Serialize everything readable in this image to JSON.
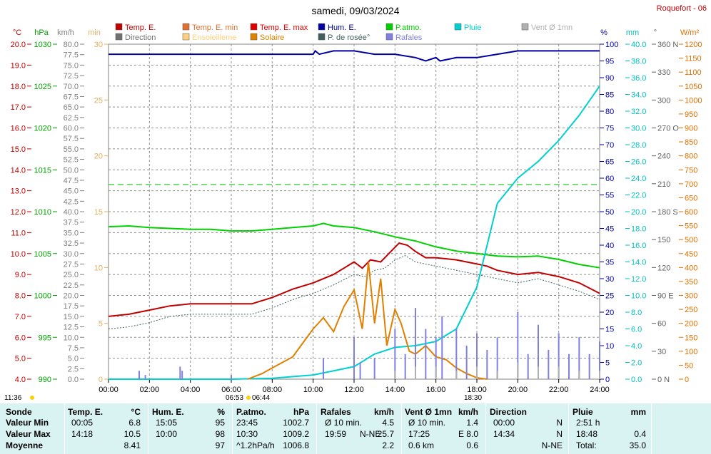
{
  "header": {
    "date_title": "samedi, 09/03/2024",
    "station": "Roquefort - 06",
    "sunrise_time": "06:53",
    "sunset_time": "18:30",
    "extra_time_left": "11:36",
    "extra_time_mid": "06:44"
  },
  "legend": [
    {
      "label": "Temp. E.",
      "color": "#c00000"
    },
    {
      "label": "Temp. E. min",
      "color": "#e07030"
    },
    {
      "label": "Temp. E. max",
      "color": "#e00000"
    },
    {
      "label": "Hum. E.",
      "color": "#0000a0"
    },
    {
      "label": "P.atmo.",
      "color": "#00d000"
    },
    {
      "label": "Pluie",
      "color": "#00d0d0"
    },
    {
      "label": "Vent Ø 1mn",
      "color": "#b0b0b0"
    },
    {
      "label": "Direction",
      "color": "#707070"
    },
    {
      "label": "Ensoleilleme",
      "color": "#ffd080"
    },
    {
      "label": "Solaire",
      "color": "#e08000"
    },
    {
      "label": "P. de rosée°",
      "color": "#406060"
    },
    {
      "label": "Rafales",
      "color": "#8080e0"
    }
  ],
  "axes": {
    "temp_unit": "°C",
    "press_unit": "hPa",
    "wind_unit": "km/h",
    "min_unit": "min",
    "hum_unit": "%",
    "rain_unit": "mm",
    "dir_unit": "°",
    "solar_unit": "W/m²",
    "temp_ticks": [
      "20.0",
      "19.0",
      "18.0",
      "17.0",
      "16.0",
      "15.0",
      "14.0",
      "13.0",
      "12.0",
      "11.0",
      "10.0",
      "9.0",
      "8.0",
      "7.0",
      "6.0",
      "5.0",
      "4.0"
    ],
    "press_ticks": [
      "1030",
      "1025",
      "1020",
      "1015",
      "1010",
      "1005",
      "1000",
      "995",
      "990"
    ],
    "wind_ticks": [
      "80.0",
      "77.5",
      "75.0",
      "72.5",
      "70.0",
      "67.5",
      "65.0",
      "62.5",
      "60.0",
      "57.5",
      "55.0",
      "52.5",
      "50.0",
      "47.5",
      "45.0",
      "42.5",
      "40.0",
      "37.5",
      "35.0",
      "32.5",
      "30.0",
      "27.5",
      "25.0",
      "22.5",
      "20.0",
      "17.5",
      "15.0",
      "12.5",
      "10.0",
      "7.5",
      "5.0",
      "2.5",
      "0.0"
    ],
    "min_ticks": [
      "30",
      "25",
      "20",
      "15",
      "10",
      "5",
      "0"
    ],
    "hum_ticks": [
      "100",
      "95",
      "90",
      "85",
      "80",
      "75",
      "70",
      "65",
      "60",
      "55",
      "50",
      "45",
      "40",
      "35",
      "30",
      "25",
      "20",
      "15",
      "10",
      "5",
      "0"
    ],
    "rain_ticks": [
      "40.0",
      "38.0",
      "36.0",
      "34.0",
      "32.0",
      "30.0",
      "28.0",
      "26.0",
      "24.0",
      "22.0",
      "20.0",
      "18.0",
      "16.0",
      "14.0",
      "12.0",
      "10.0",
      "8.0",
      "6.0",
      "4.0",
      "2.0",
      "0.0"
    ],
    "dir_ticks": [
      "360 N",
      "330",
      "300",
      "270 O",
      "240",
      "210",
      "180 S",
      "150",
      "120",
      "90 E",
      "60",
      "30",
      "0 N"
    ],
    "solar_ticks": [
      "1200",
      "1150",
      "1100",
      "1050",
      "1000",
      "950",
      "900",
      "850",
      "800",
      "750",
      "700",
      "650",
      "600",
      "550",
      "500",
      "450",
      "400",
      "350",
      "300",
      "250",
      "200",
      "150",
      "100",
      "50",
      "0"
    ],
    "time_ticks": [
      "00:00",
      "02:00",
      "04:00",
      "06:00",
      "08:00",
      "10:00",
      "12:00",
      "14:00",
      "16:00",
      "18:00",
      "20:00",
      "22:00",
      "24:00"
    ]
  },
  "chart_data": {
    "type": "line",
    "title": "samedi, 09/03/2024",
    "x_unit": "hours",
    "x_range": [
      0,
      24
    ],
    "ylim_temp": [
      4,
      20
    ],
    "ylim_pressure": [
      990,
      1030
    ],
    "ylim_humidity": [
      0,
      100
    ],
    "ylim_rain": [
      0,
      40
    ],
    "ylim_solar": [
      0,
      1200
    ],
    "ylim_wind": [
      0,
      80
    ],
    "grid": true,
    "series": [
      {
        "name": "Temp. E.",
        "axis": "temp",
        "color": "#c00000",
        "points": [
          [
            0,
            7.0
          ],
          [
            1,
            7.1
          ],
          [
            2,
            7.3
          ],
          [
            3,
            7.5
          ],
          [
            4,
            7.6
          ],
          [
            5,
            7.6
          ],
          [
            6,
            7.6
          ],
          [
            7,
            7.6
          ],
          [
            8,
            7.9
          ],
          [
            9,
            8.3
          ],
          [
            10,
            8.6
          ],
          [
            11,
            9.0
          ],
          [
            11.5,
            9.3
          ],
          [
            12,
            9.6
          ],
          [
            12.4,
            9.3
          ],
          [
            12.8,
            9.7
          ],
          [
            13.3,
            9.6
          ],
          [
            13.8,
            10.1
          ],
          [
            14.2,
            10.5
          ],
          [
            14.6,
            10.4
          ],
          [
            15,
            10.1
          ],
          [
            15.5,
            9.8
          ],
          [
            16,
            9.8
          ],
          [
            17,
            9.7
          ],
          [
            18,
            9.5
          ],
          [
            18.5,
            9.4
          ],
          [
            19,
            9.2
          ],
          [
            20,
            9.0
          ],
          [
            21,
            9.1
          ],
          [
            22,
            8.9
          ],
          [
            23,
            8.6
          ],
          [
            24,
            8.1
          ]
        ]
      },
      {
        "name": "P. de rosée°",
        "axis": "temp",
        "color": "#406060",
        "points": [
          [
            0,
            6.4
          ],
          [
            1,
            6.5
          ],
          [
            2,
            6.7
          ],
          [
            3,
            7.0
          ],
          [
            4,
            7.1
          ],
          [
            5,
            7.1
          ],
          [
            6,
            7.1
          ],
          [
            7,
            7.1
          ],
          [
            8,
            7.4
          ],
          [
            9,
            7.8
          ],
          [
            10,
            8.1
          ],
          [
            11,
            8.5
          ],
          [
            12,
            9.0
          ],
          [
            12.5,
            8.9
          ],
          [
            13,
            9.2
          ],
          [
            13.5,
            9.3
          ],
          [
            14,
            9.7
          ],
          [
            14.5,
            9.9
          ],
          [
            15,
            9.6
          ],
          [
            16,
            9.4
          ],
          [
            17,
            9.2
          ],
          [
            18,
            9.0
          ],
          [
            19,
            8.8
          ],
          [
            20,
            8.6
          ],
          [
            21,
            8.8
          ],
          [
            22,
            8.5
          ],
          [
            23,
            8.2
          ],
          [
            24,
            7.8
          ]
        ]
      },
      {
        "name": "P.atmo.",
        "axis": "pressure",
        "color": "#00d000",
        "points": [
          [
            0,
            1008.2
          ],
          [
            1,
            1008.3
          ],
          [
            2,
            1008.1
          ],
          [
            3,
            1008.0
          ],
          [
            4,
            1007.9
          ],
          [
            5,
            1007.9
          ],
          [
            6,
            1007.7
          ],
          [
            7,
            1007.7
          ],
          [
            8,
            1007.9
          ],
          [
            9,
            1008.1
          ],
          [
            10,
            1008.3
          ],
          [
            10.5,
            1008.6
          ],
          [
            11,
            1008.3
          ],
          [
            12,
            1008.1
          ],
          [
            13,
            1007.6
          ],
          [
            14,
            1007.0
          ],
          [
            15,
            1006.5
          ],
          [
            16,
            1005.8
          ],
          [
            17,
            1005.3
          ],
          [
            18,
            1005.0
          ],
          [
            19,
            1004.7
          ],
          [
            20,
            1004.6
          ],
          [
            21,
            1004.7
          ],
          [
            22,
            1004.3
          ],
          [
            23,
            1003.7
          ],
          [
            24,
            1003.3
          ]
        ]
      },
      {
        "name": "Hum. E.",
        "axis": "humidity",
        "color": "#0000a0",
        "points": [
          [
            0,
            97
          ],
          [
            10,
            97
          ],
          [
            10.1,
            98
          ],
          [
            10.3,
            97
          ],
          [
            11,
            98
          ],
          [
            12,
            98
          ],
          [
            13,
            97
          ],
          [
            14,
            97
          ],
          [
            15,
            96
          ],
          [
            15.5,
            95
          ],
          [
            16,
            96
          ],
          [
            16.2,
            95
          ],
          [
            17,
            96
          ],
          [
            18,
            96
          ],
          [
            19,
            97
          ],
          [
            20,
            98
          ],
          [
            24,
            98
          ]
        ]
      },
      {
        "name": "Pluie",
        "axis": "rain",
        "color": "#00d0d0",
        "points": [
          [
            0,
            0
          ],
          [
            6,
            0
          ],
          [
            8,
            0.1
          ],
          [
            10,
            0.5
          ],
          [
            12,
            1.5
          ],
          [
            13,
            3.0
          ],
          [
            14,
            3.8
          ],
          [
            15,
            4.0
          ],
          [
            16,
            4.5
          ],
          [
            17,
            6.0
          ],
          [
            18,
            11.0
          ],
          [
            19,
            21.0
          ],
          [
            20,
            24.0
          ],
          [
            21,
            26.0
          ],
          [
            22,
            28.5
          ],
          [
            23,
            31.5
          ],
          [
            24,
            35.0
          ]
        ]
      },
      {
        "name": "Solaire",
        "axis": "solar",
        "color": "#e08000",
        "points": [
          [
            6.8,
            0
          ],
          [
            7.5,
            20
          ],
          [
            8,
            40
          ],
          [
            9,
            80
          ],
          [
            9.5,
            130
          ],
          [
            10,
            180
          ],
          [
            10.5,
            220
          ],
          [
            11,
            170
          ],
          [
            11.5,
            260
          ],
          [
            12,
            320
          ],
          [
            12.4,
            180
          ],
          [
            12.7,
            420
          ],
          [
            13,
            200
          ],
          [
            13.3,
            360
          ],
          [
            13.6,
            120
          ],
          [
            14,
            250
          ],
          [
            14.3,
            200
          ],
          [
            14.7,
            100
          ],
          [
            15,
            90
          ],
          [
            15.5,
            120
          ],
          [
            16,
            80
          ],
          [
            16.5,
            70
          ],
          [
            17,
            40
          ],
          [
            17.5,
            20
          ],
          [
            18,
            5
          ],
          [
            18.5,
            0
          ]
        ]
      },
      {
        "name": "Rafales",
        "axis": "wind",
        "color": "#8080e0",
        "points": [
          [
            1.5,
            2
          ],
          [
            1.8,
            1
          ],
          [
            3.5,
            3
          ],
          [
            3.6,
            2
          ],
          [
            6,
            1
          ],
          [
            10.5,
            5
          ],
          [
            12,
            10
          ],
          [
            12.3,
            4
          ],
          [
            13,
            5
          ],
          [
            14,
            12
          ],
          [
            14.5,
            6
          ],
          [
            15,
            17
          ],
          [
            15.5,
            12
          ],
          [
            16,
            10
          ],
          [
            16.3,
            15
          ],
          [
            17,
            12
          ],
          [
            17.5,
            8
          ],
          [
            18,
            11
          ],
          [
            18.5,
            7
          ],
          [
            19,
            10
          ],
          [
            20,
            16
          ],
          [
            20.5,
            6
          ],
          [
            21,
            13
          ],
          [
            21.5,
            7
          ],
          [
            22,
            11
          ],
          [
            22.5,
            6
          ],
          [
            23,
            10
          ],
          [
            23.5,
            6
          ],
          [
            24,
            9
          ]
        ]
      },
      {
        "name": "Vent Ø 1mn",
        "axis": "wind",
        "color": "#b0b0b0",
        "points": [
          [
            14,
            2
          ],
          [
            15,
            3
          ],
          [
            16,
            3
          ],
          [
            17,
            2
          ],
          [
            18,
            3
          ],
          [
            19,
            2
          ],
          [
            20,
            4
          ],
          [
            21,
            3
          ],
          [
            22,
            3
          ],
          [
            23,
            2
          ],
          [
            24,
            2
          ]
        ]
      }
    ],
    "reference_line": {
      "axis": "pressure",
      "value": 1013.25
    }
  },
  "stats": {
    "headers": [
      "Sonde",
      "Temp. E.",
      "°C",
      "Hum. E.",
      "%",
      "P.atmo.",
      "hPa",
      "Rafales",
      "km/h",
      "Vent Ø 1mn",
      "km/h",
      "Direction",
      "Pluie",
      "mm"
    ],
    "row_labels": [
      "Valeur Min",
      "Valeur Max",
      "Moyenne"
    ],
    "temp": [
      [
        "00:05",
        "6.8"
      ],
      [
        "14:18",
        "10.5"
      ],
      [
        "",
        "8.41"
      ]
    ],
    "hum": [
      [
        "15:05",
        "95"
      ],
      [
        "10:00",
        "98"
      ],
      [
        "",
        "97"
      ]
    ],
    "press": [
      [
        "23:45",
        "1002.7"
      ],
      [
        "10:30",
        "1009.2"
      ],
      [
        "^1.2hPa/h",
        "1006.8"
      ]
    ],
    "gust": [
      [
        "Ø 10 min.",
        "",
        "4.5"
      ],
      [
        "19:59",
        "N-NE",
        "25.7"
      ],
      [
        "",
        "",
        "2.2"
      ]
    ],
    "wind": [
      [
        "Ø 10 min.",
        "1.4"
      ],
      [
        "17:25",
        "E 8.0"
      ],
      [
        "0.6 km",
        "0.6"
      ]
    ],
    "dir": [
      [
        "00:00",
        "N"
      ],
      [
        "14:34",
        "N"
      ],
      [
        "",
        "N-NE"
      ]
    ],
    "rain": [
      [
        "2:51 h",
        ""
      ],
      [
        "18:48",
        "0.4"
      ],
      [
        "Total:",
        "35.0"
      ]
    ]
  }
}
